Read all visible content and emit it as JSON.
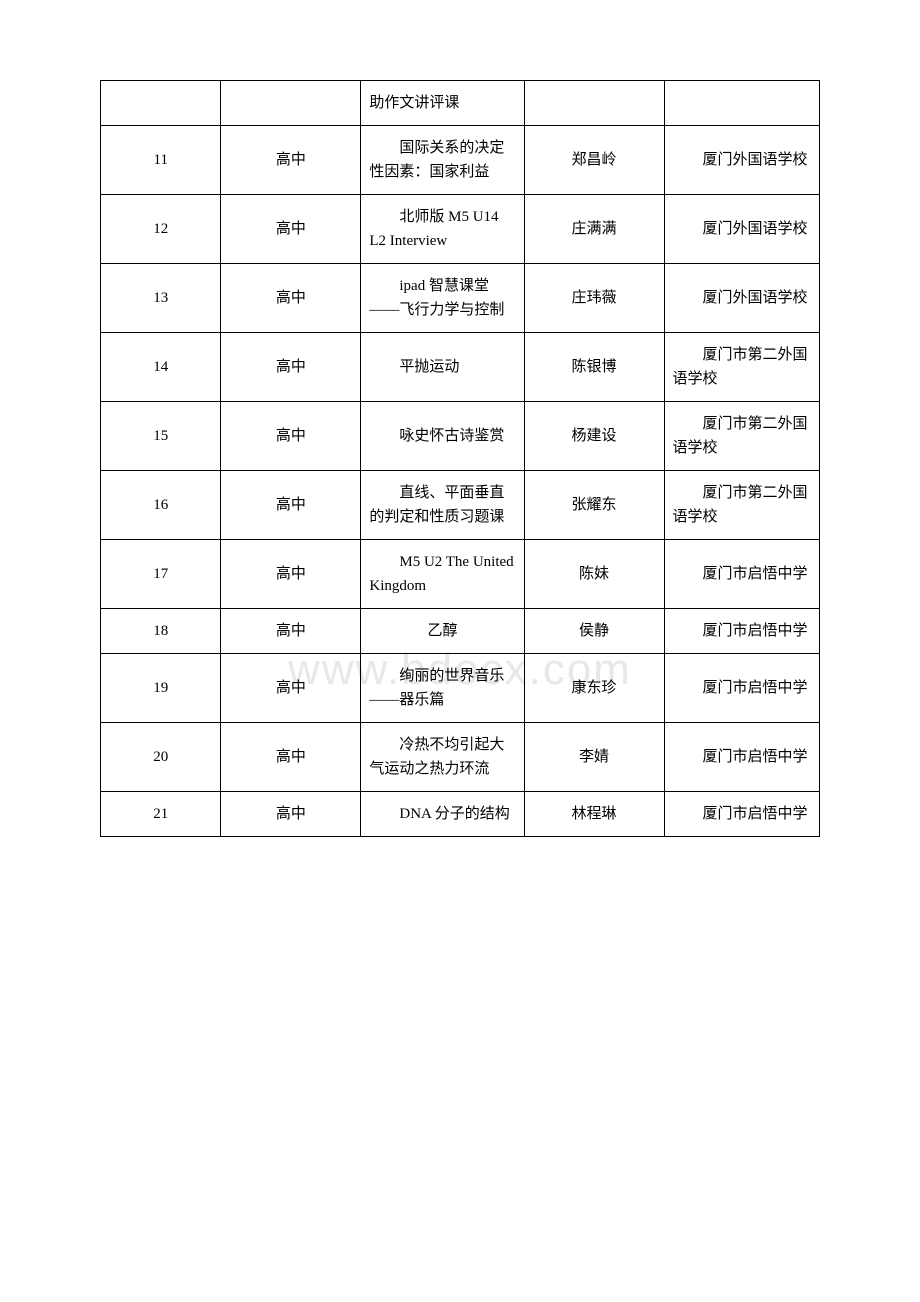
{
  "watermark": "www.bdocx.com",
  "table": {
    "rows": [
      {
        "num": "",
        "level": "",
        "title": "助作文讲评课",
        "teacher": "",
        "school": ""
      },
      {
        "num": "11",
        "level": "高中",
        "title": "国际关系的决定性因素：国家利益",
        "teacher": "郑昌岭",
        "school": "厦门外国语学校"
      },
      {
        "num": "12",
        "level": "高中",
        "title": "北师版 M5 U14 L2 Interview",
        "teacher": "庄满满",
        "school": "厦门外国语学校"
      },
      {
        "num": "13",
        "level": "高中",
        "title": "ipad 智慧课堂——飞行力学与控制",
        "teacher": "庄玮薇",
        "school": "厦门外国语学校"
      },
      {
        "num": "14",
        "level": "高中",
        "title": "平抛运动",
        "teacher": "陈银博",
        "school": "厦门市第二外国语学校"
      },
      {
        "num": "15",
        "level": "高中",
        "title": "咏史怀古诗鉴赏",
        "teacher": "杨建设",
        "school": "厦门市第二外国语学校"
      },
      {
        "num": "16",
        "level": "高中",
        "title": "直线、平面垂直的判定和性质习题课",
        "teacher": "张耀东",
        "school": "厦门市第二外国语学校"
      },
      {
        "num": "17",
        "level": "高中",
        "title": "M5 U2 The United Kingdom",
        "teacher": "陈妹",
        "school": "厦门市启悟中学"
      },
      {
        "num": "18",
        "level": "高中",
        "title": "乙醇",
        "teacher": "侯静",
        "school": "厦门市启悟中学"
      },
      {
        "num": "19",
        "level": "高中",
        "title": "绚丽的世界音乐——器乐篇",
        "teacher": "康东珍",
        "school": "厦门市启悟中学"
      },
      {
        "num": "20",
        "level": "高中",
        "title": "冷热不均引起大气运动之热力环流",
        "teacher": "李婧",
        "school": "厦门市启悟中学"
      },
      {
        "num": "21",
        "level": "高中",
        "title": "DNA 分子的结构",
        "teacher": "林程琳",
        "school": "厦门市启悟中学"
      }
    ]
  }
}
